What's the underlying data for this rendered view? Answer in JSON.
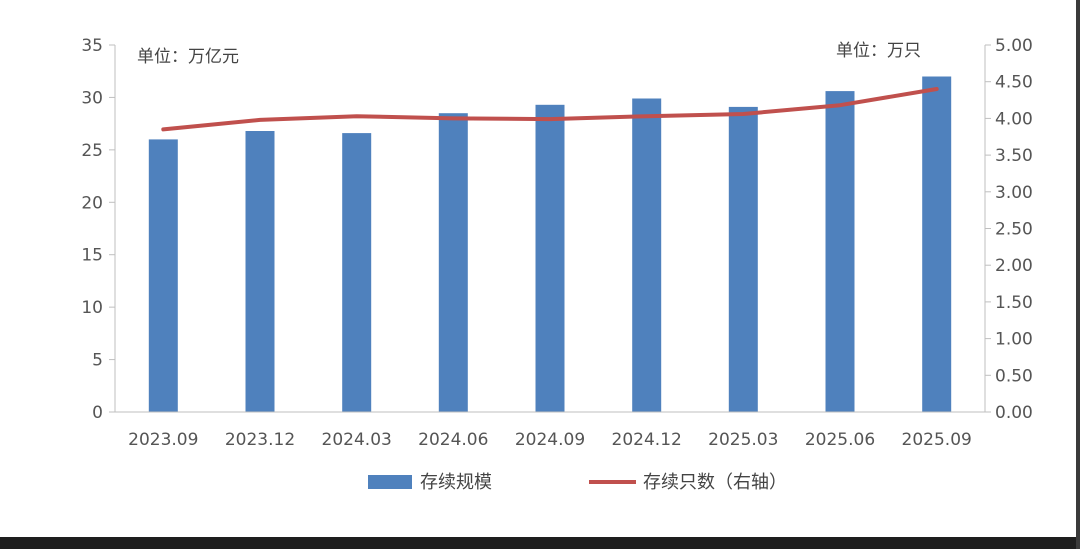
{
  "chart_data": {
    "type": "bar+line",
    "categories": [
      "2023.09",
      "2023.12",
      "2024.03",
      "2024.06",
      "2024.09",
      "2024.12",
      "2025.03",
      "2025.06",
      "2025.09"
    ],
    "series": [
      {
        "name": "存续规模",
        "type": "bar",
        "axis": "left",
        "color": "#4f81bd",
        "values": [
          26.0,
          26.8,
          26.6,
          28.5,
          29.3,
          29.9,
          29.1,
          30.6,
          32.0
        ]
      },
      {
        "name": "存续只数（右轴）",
        "type": "line",
        "axis": "right",
        "color": "#c0504d",
        "values": [
          3.85,
          3.98,
          4.03,
          4.0,
          3.99,
          4.03,
          4.06,
          4.18,
          4.4
        ]
      }
    ],
    "left_axis": {
      "unit_label": "单位：万亿元",
      "min": 0,
      "max": 35,
      "ticks": [
        "0",
        "5",
        "10",
        "15",
        "20",
        "25",
        "30",
        "35"
      ]
    },
    "right_axis": {
      "unit_label": "单位：万只",
      "min": 0,
      "max": 5,
      "ticks": [
        "0.00",
        "0.50",
        "1.00",
        "1.50",
        "2.00",
        "2.50",
        "3.00",
        "3.50",
        "4.00",
        "4.50",
        "5.00"
      ]
    },
    "grid": false,
    "legend_position": "bottom"
  }
}
